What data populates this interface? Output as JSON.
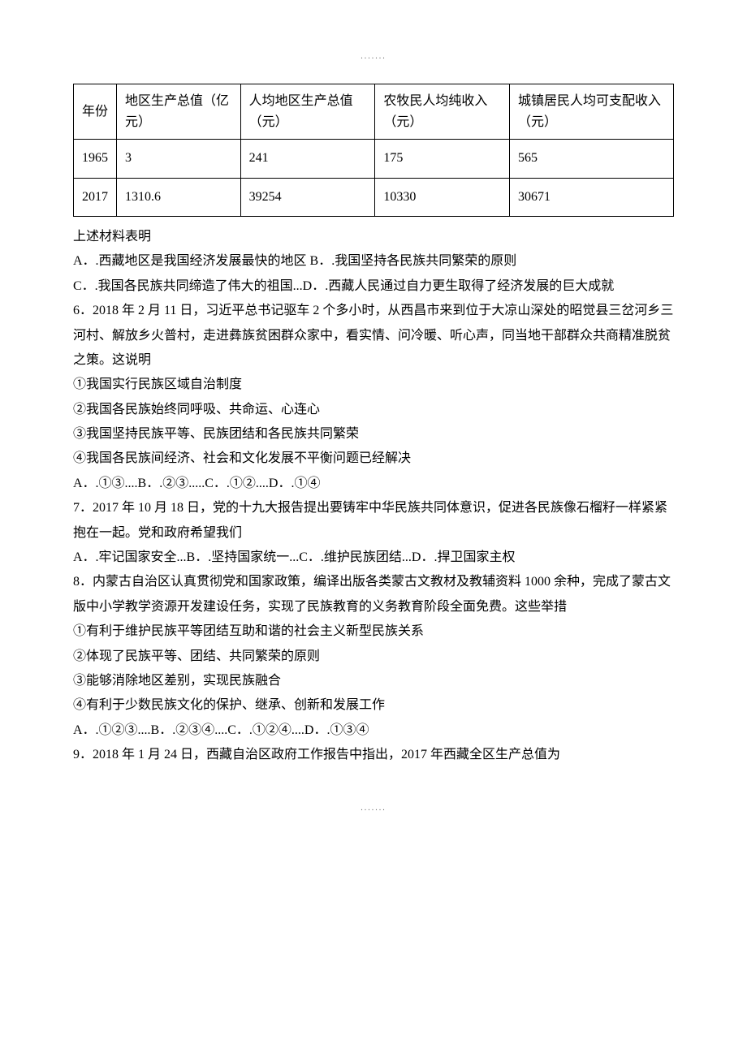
{
  "dots": ".......",
  "table": {
    "headers": [
      "年份",
      "地区生产总值（亿元）",
      "人均地区生产总值（元）",
      "农牧民人均纯收入（元）",
      "城镇居民人均可支配收入（元）"
    ],
    "rows": [
      [
        "1965",
        "3",
        "241",
        "175",
        "565"
      ],
      [
        "2017",
        "1310.6",
        "39254",
        "10330",
        "30671"
      ]
    ]
  },
  "q5_stem": "上述材料表明",
  "q5_optA": "A．.西藏地区是我国经济发展最快的地区 B．.我国坚持各民族共同繁荣的原则",
  "q5_optC": "C．.我国各民族共同缔造了伟大的祖国...D．.西藏人民通过自力更生取得了经济发展的巨大成就",
  "q6_stem1": "6．2018 年 2 月 11 日，习近平总书记驱车 2 个多小时，从西昌市来到位于大凉山深处的昭觉县三岔河乡三河村、解放乡火普村，走进彝族贫困群众家中，看实情、问冷暖、听心声，同当地干部群众共商精准脱贫之策。这说明",
  "q6_c1": "①我国实行民族区域自治制度",
  "q6_c2": "②我国各民族始终同呼吸、共命运、心连心",
  "q6_c3": "③我国坚持民族平等、民族团结和各民族共同繁荣",
  "q6_c4": "④我国各民族间经济、社会和文化发展不平衡问题已经解决",
  "q6_opts": "A．.①③....B．.②③.....C．.①②....D．.①④",
  "q7_stem": "7．2017 年 10 月 18 日，党的十九大报告提出要铸牢中华民族共同体意识，促进各民族像石榴籽一样紧紧抱在一起。党和政府希望我们",
  "q7_opts": "A．.牢记国家安全...B．.坚持国家统一...C．.维护民族团结...D．.捍卫国家主权",
  "q8_stem": "8．内蒙古自治区认真贯彻党和国家政策，编译出版各类蒙古文教材及教辅资料 1000 余种，完成了蒙古文版中小学教学资源开发建设任务，实现了民族教育的义务教育阶段全面免费。这些举措",
  "q8_c1": "①有利于维护民族平等团结互助和谐的社会主义新型民族关系",
  "q8_c2": "②体现了民族平等、团结、共同繁荣的原则",
  "q8_c3": "③能够消除地区差别，实现民族融合",
  "q8_c4": "④有利于少数民族文化的保护、继承、创新和发展工作",
  "q8_opts": "A．.①②③....B．.②③④....C．.①②④....D．.①③④",
  "q9_stem": "9．2018 年 1 月 24 日，西藏自治区政府工作报告中指出，2017 年西藏全区生产总值为"
}
